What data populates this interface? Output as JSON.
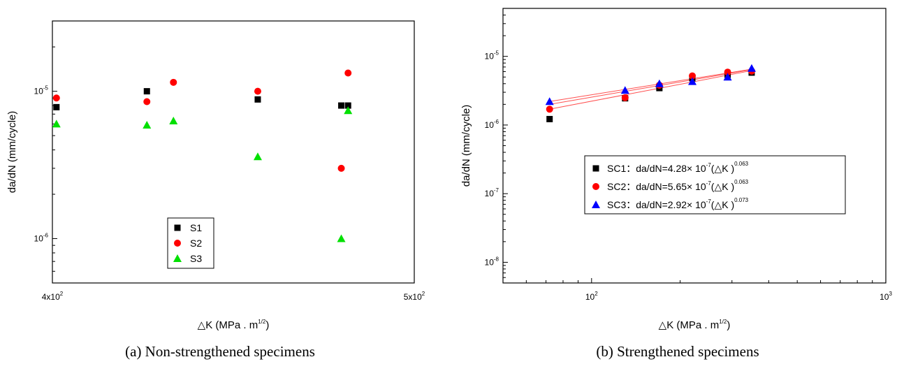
{
  "captions": [
    "(a) Non-strengthened specimens",
    "(b) Strengthened specimens"
  ],
  "chart_data": [
    {
      "type": "scatter",
      "caption": "(a) Non-strengthened specimens",
      "xlabel": "△K (MPa . m^1/2)",
      "ylabel": "da/dN (mm/cycle)",
      "xscale": "log",
      "yscale": "log",
      "xlim": [
        400,
        500
      ],
      "ylim": [
        5e-07,
        3e-05
      ],
      "x_ticks": [
        {
          "value": 400,
          "base": "4x10",
          "exp": "2"
        },
        {
          "value": 500,
          "base": "5x10",
          "exp": "2"
        }
      ],
      "y_ticks": [
        {
          "value": 1e-06,
          "base": "10",
          "exp": "-6"
        },
        {
          "value": 1e-05,
          "base": "10",
          "exp": "-5"
        }
      ],
      "legend": {
        "position": "lower-center",
        "entries": [
          "S1",
          "S2",
          "S3"
        ]
      },
      "series": [
        {
          "name": "S1",
          "marker": "square",
          "color": "#000000",
          "x": [
            401,
            424,
            454,
            478,
            480
          ],
          "y": [
            7.8e-06,
            1e-05,
            8.8e-06,
            8e-06,
            8e-06
          ]
        },
        {
          "name": "S2",
          "marker": "circle",
          "color": "#ff0000",
          "x": [
            401,
            424,
            431,
            454,
            478,
            480
          ],
          "y": [
            9e-06,
            8.5e-06,
            1.15e-05,
            1e-05,
            3e-06,
            1.33e-05
          ]
        },
        {
          "name": "S3",
          "marker": "triangle",
          "color": "#00e000",
          "x": [
            401,
            424,
            431,
            454,
            478,
            480
          ],
          "y": [
            6e-06,
            5.9e-06,
            6.3e-06,
            3.6e-06,
            1e-06,
            7.4e-06
          ]
        }
      ]
    },
    {
      "type": "scatter",
      "caption": "(b) Strengthened specimens",
      "xlabel": "△K (MPa . m^1/2)",
      "ylabel": "da/dN (mm/cycle)",
      "xscale": "log",
      "yscale": "log",
      "xlim": [
        50,
        1000
      ],
      "ylim": [
        5e-09,
        5e-05
      ],
      "x_ticks": [
        {
          "value": 100,
          "base": "10",
          "exp": "2"
        },
        {
          "value": 1000,
          "base": "10",
          "exp": "3"
        }
      ],
      "y_ticks": [
        {
          "value": 1e-08,
          "base": "10",
          "exp": "-8"
        },
        {
          "value": 1e-07,
          "base": "10",
          "exp": "-7"
        },
        {
          "value": 1e-06,
          "base": "10",
          "exp": "-6"
        },
        {
          "value": 1e-05,
          "base": "10",
          "exp": "-5"
        }
      ],
      "legend": {
        "position": "center-right",
        "entries": [
          {
            "name": "SC1",
            "text": "SC1：da/dN=4.28× 10",
            "exp1": "-7",
            "mid": "(△K )",
            "exp2": "0.063"
          },
          {
            "name": "SC2",
            "text": "SC2：da/dN=5.65× 10",
            "exp1": "-7",
            "mid": "(△K )",
            "exp2": "0.063"
          },
          {
            "name": "SC3",
            "text": "SC3：da/dN=2.92× 10",
            "exp1": "-7",
            "mid": "(△K )",
            "exp2": "0.073"
          }
        ]
      },
      "series": [
        {
          "name": "SC1",
          "marker": "square",
          "color": "#000000",
          "x": [
            72,
            130,
            170,
            220,
            290,
            350
          ],
          "y": [
            1.22e-06,
            2.45e-06,
            3.45e-06,
            4.8e-06,
            5.4e-06,
            5.8e-06
          ],
          "fit": {
            "x": [
              72,
              350
            ],
            "y": [
              1.7e-06,
              6.2e-06
            ]
          }
        },
        {
          "name": "SC2",
          "marker": "circle",
          "color": "#ff0000",
          "x": [
            72,
            130,
            170,
            220,
            290,
            350
          ],
          "y": [
            1.7e-06,
            2.5e-06,
            3.8e-06,
            5.2e-06,
            5.9e-06,
            6.1e-06
          ],
          "fit": {
            "x": [
              72,
              350
            ],
            "y": [
              2e-06,
              6.4e-06
            ]
          }
        },
        {
          "name": "SC3",
          "marker": "triangle",
          "color": "#0000ff",
          "x": [
            72,
            130,
            170,
            220,
            290,
            350
          ],
          "y": [
            2.2e-06,
            3.2e-06,
            4e-06,
            4.3e-06,
            5e-06,
            6.7e-06
          ],
          "fit": {
            "x": [
              72,
              350
            ],
            "y": [
              2.2e-06,
              6.5e-06
            ]
          }
        }
      ]
    }
  ]
}
